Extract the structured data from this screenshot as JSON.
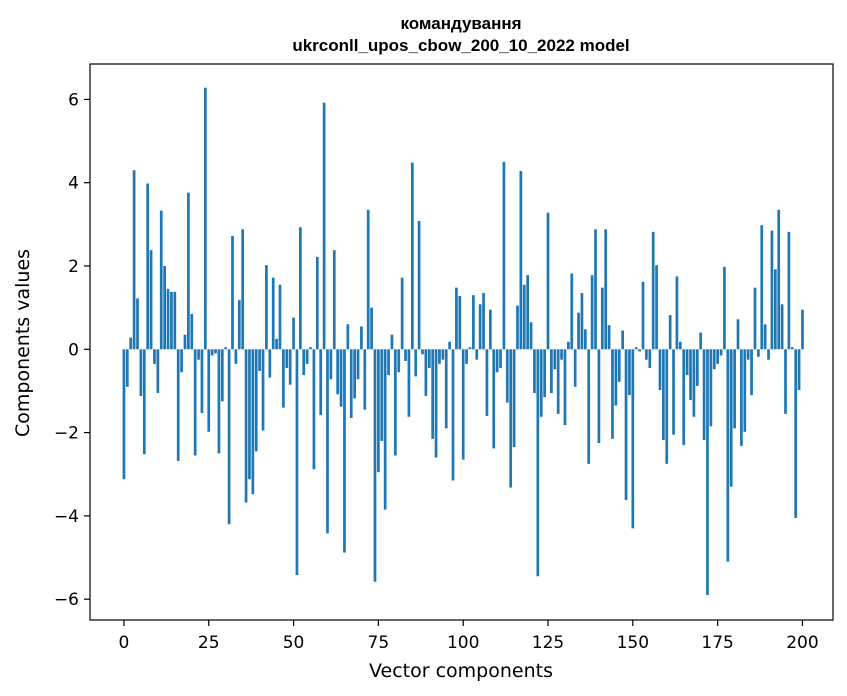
{
  "chart_data": {
    "type": "bar",
    "title_line1": "командування",
    "title_line2": "ukrconll_upos_cbow_200_10_2022 model",
    "xlabel": "Vector components",
    "ylabel": "Components values",
    "xlim": [
      -10,
      209
    ],
    "ylim": [
      -6.5,
      6.85
    ],
    "x_ticks": [
      0,
      25,
      50,
      75,
      100,
      125,
      150,
      175,
      200
    ],
    "y_ticks": [
      -6,
      -4,
      -2,
      0,
      2,
      4,
      6
    ],
    "y_tick_labels": [
      "−6",
      "−4",
      "−2",
      "0",
      "2",
      "4",
      "6"
    ],
    "bar_color": "#1f77b4",
    "grid": false,
    "values": [
      -3.12,
      -0.9,
      0.28,
      4.3,
      1.22,
      -1.12,
      -2.52,
      3.98,
      2.38,
      -0.35,
      -1.05,
      3.33,
      2.0,
      1.45,
      1.38,
      1.38,
      -2.68,
      -0.55,
      0.35,
      3.76,
      0.85,
      -2.55,
      -0.25,
      -1.53,
      6.28,
      -1.98,
      -0.15,
      -0.1,
      -2.5,
      -1.25,
      0.05,
      -4.2,
      2.72,
      -0.35,
      1.18,
      2.88,
      -3.68,
      -3.12,
      -3.48,
      -2.45,
      -0.52,
      -1.95,
      2.02,
      -0.68,
      1.72,
      0.25,
      1.55,
      -1.4,
      -0.45,
      -0.85,
      0.76,
      -5.42,
      2.93,
      -0.62,
      -0.35,
      0.05,
      -2.88,
      2.22,
      -1.58,
      5.92,
      -4.42,
      -0.72,
      2.38,
      -1.08,
      -1.38,
      -4.88,
      0.6,
      -1.65,
      -1.18,
      -0.72,
      0.55,
      -1.45,
      3.35,
      1.0,
      -5.58,
      -2.95,
      -2.2,
      -3.85,
      -0.62,
      0.35,
      -2.55,
      -0.55,
      1.72,
      -0.28,
      -1.62,
      4.48,
      -0.65,
      3.08,
      -0.12,
      -1.12,
      -0.45,
      -2.15,
      -2.6,
      -0.35,
      -0.25,
      -1.9,
      0.18,
      -3.15,
      1.48,
      1.28,
      -2.65,
      -0.35,
      0.05,
      1.3,
      -0.25,
      1.08,
      1.35,
      -1.6,
      0.95,
      -2.38,
      -0.55,
      -0.45,
      4.5,
      -1.28,
      -3.32,
      -2.35,
      1.05,
      4.28,
      1.55,
      1.78,
      0.65,
      -1.05,
      -5.45,
      -1.62,
      -1.15,
      3.28,
      -1.05,
      -0.48,
      -1.55,
      -0.25,
      -1.82,
      0.18,
      1.82,
      -0.9,
      0.88,
      1.35,
      0.48,
      -2.75,
      1.78,
      2.88,
      -2.25,
      1.48,
      2.88,
      0.58,
      -2.15,
      -1.35,
      -0.78,
      0.45,
      -3.62,
      -1.1,
      -4.3,
      0.05,
      -0.05,
      1.62,
      -0.25,
      -0.45,
      2.82,
      2.02,
      -0.98,
      -2.18,
      -2.75,
      0.82,
      -2.05,
      1.75,
      0.18,
      -2.3,
      -0.62,
      -1.22,
      -1.62,
      -0.88,
      0.4,
      -2.18,
      -5.9,
      -1.85,
      -0.48,
      -0.35,
      -0.15,
      1.98,
      -5.1,
      -3.3,
      -1.9,
      0.72,
      -2.32,
      -1.98,
      -0.25,
      -1.1,
      1.48,
      -0.18,
      2.98,
      0.6,
      -0.25,
      2.85,
      1.92,
      3.35,
      1.08,
      -1.55,
      2.82,
      0.05,
      -4.05,
      -0.98,
      0.95
    ]
  }
}
